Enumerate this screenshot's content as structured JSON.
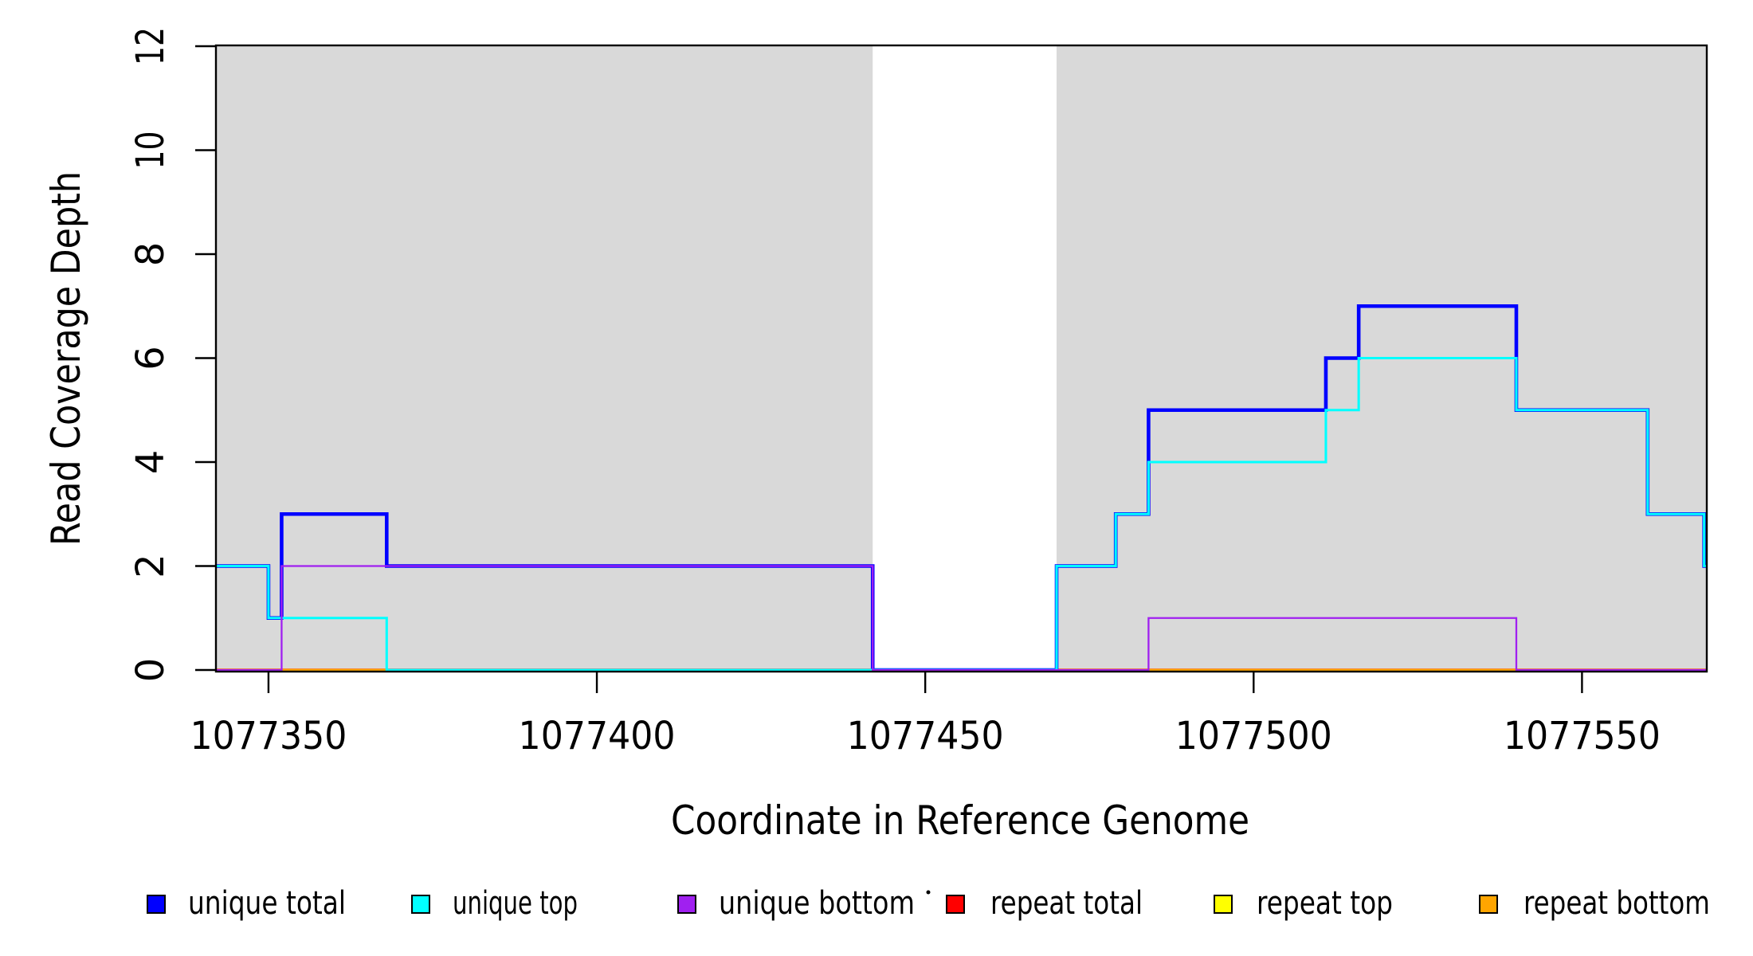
{
  "chart_data": {
    "type": "line",
    "subtype": "step-coverage",
    "title": "",
    "xlabel": "Coordinate in Reference Genome",
    "ylabel": "Read Coverage Depth",
    "xlim": [
      1077342,
      1077569
    ],
    "ylim": [
      0,
      12
    ],
    "x_ticks": [
      1077350,
      1077400,
      1077450,
      1077500,
      1077550
    ],
    "y_ticks": [
      0,
      2,
      4,
      6,
      8,
      10,
      12
    ],
    "grid": false,
    "plot_background": "#ffffff",
    "shaded_regions": {
      "color": "#D9D9D9",
      "note": "gray alignability blocks; white gap between them where depth is 0",
      "ranges": [
        [
          1077342,
          1077442
        ],
        [
          1077470,
          1077569
        ]
      ]
    },
    "series": [
      {
        "name": "repeat total",
        "color": "#FF0000",
        "values_constant": 0,
        "steps": [
          [
            1077342,
            0
          ],
          [
            1077569,
            0
          ]
        ]
      },
      {
        "name": "repeat top",
        "color": "#FFFF00",
        "values_constant": 0,
        "steps": [
          [
            1077342,
            0
          ],
          [
            1077569,
            0
          ]
        ]
      },
      {
        "name": "repeat bottom",
        "color": "#FFA500",
        "values_constant": 0,
        "steps": [
          [
            1077342,
            0
          ],
          [
            1077569,
            0
          ]
        ]
      },
      {
        "name": "unique total",
        "color": "#0000FF",
        "steps": [
          [
            1077342,
            2
          ],
          [
            1077350,
            1
          ],
          [
            1077352,
            3
          ],
          [
            1077368,
            2
          ],
          [
            1077442,
            0
          ],
          [
            1077470,
            2
          ],
          [
            1077479,
            3
          ],
          [
            1077484,
            5
          ],
          [
            1077511,
            6
          ],
          [
            1077516,
            7
          ],
          [
            1077540,
            5
          ],
          [
            1077560,
            3
          ],
          [
            1077568.6,
            2
          ],
          [
            1077569,
            2
          ]
        ]
      },
      {
        "name": "unique top",
        "color": "#00FFFF",
        "steps": [
          [
            1077342,
            2
          ],
          [
            1077350,
            1
          ],
          [
            1077368,
            0
          ],
          [
            1077470,
            2
          ],
          [
            1077479,
            3
          ],
          [
            1077484,
            4
          ],
          [
            1077511,
            5
          ],
          [
            1077516,
            6
          ],
          [
            1077540,
            5
          ],
          [
            1077560,
            3
          ],
          [
            1077568.6,
            2
          ],
          [
            1077569,
            2
          ]
        ]
      },
      {
        "name": "unique bottom",
        "color": "#A020F0",
        "steps": [
          [
            1077342,
            0
          ],
          [
            1077352,
            2
          ],
          [
            1077442,
            0
          ],
          [
            1077484,
            1
          ],
          [
            1077540,
            0
          ],
          [
            1077569,
            0
          ]
        ]
      }
    ],
    "legend": {
      "position": "bottom",
      "marker": "filled-square-black-border",
      "entries": [
        {
          "label": "unique total",
          "color": "#0000FF"
        },
        {
          "label": "unique top",
          "color": "#00FFFF"
        },
        {
          "label": "unique bottom",
          "color": "#A020F0"
        },
        {
          "label": "repeat total",
          "color": "#FF0000"
        },
        {
          "label": "repeat top",
          "color": "#FFFF00"
        },
        {
          "label": "repeat bottom",
          "color": "#FFA500"
        }
      ],
      "stray_dot": {
        "present": true,
        "note": "tiny black point between 'unique bottom' and red square"
      }
    },
    "axis_color": "#000000",
    "tick_label_values": {
      "x": [
        "1077350",
        "1077400",
        "1077450",
        "1077500",
        "1077550"
      ],
      "y": [
        "0",
        "2",
        "4",
        "6",
        "8",
        "10",
        "12"
      ]
    }
  }
}
